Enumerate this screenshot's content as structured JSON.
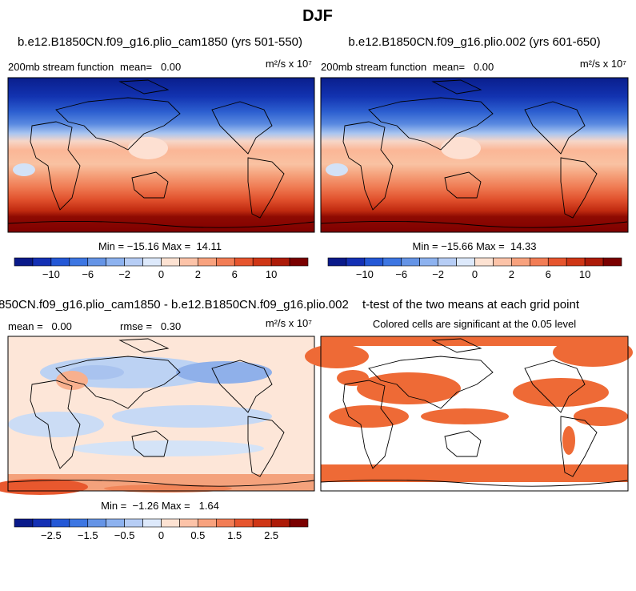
{
  "title": "DJF",
  "panels": [
    {
      "title": "b.e12.B1850CN.f09_g16.plio_cam1850 (yrs 501-550)",
      "left_label": "200mb stream function",
      "mid_label": "mean=   0.00",
      "units": "m²/s x 10⁷",
      "stats": "Min = −15.16 Max =  14.11",
      "colorbar": {
        "labels": [
          "−10",
          "−6",
          "−2",
          "0",
          "2",
          "6",
          "10"
        ],
        "colors": [
          "#0a1a8a",
          "#1430b4",
          "#2458d6",
          "#3d76e2",
          "#6594e6",
          "#8db2ef",
          "#b6cdf5",
          "#dde9fb",
          "#fde2d2",
          "#fcc3a8",
          "#f8a27e",
          "#f27d55",
          "#e6552e",
          "#cf3616",
          "#ad1b08",
          "#7a0000"
        ]
      }
    },
    {
      "title": "b.e12.B1850CN.f09_g16.plio.002 (yrs 601-650)",
      "left_label": "200mb stream function",
      "mid_label": "mean=   0.00",
      "units": "m²/s x 10⁷",
      "stats": "Min = −15.66 Max =  14.33",
      "colorbar": {
        "labels": [
          "−10",
          "−6",
          "−2",
          "0",
          "2",
          "6",
          "10"
        ],
        "colors": [
          "#0a1a8a",
          "#1430b4",
          "#2458d6",
          "#3d76e2",
          "#6594e6",
          "#8db2ef",
          "#b6cdf5",
          "#dde9fb",
          "#fde2d2",
          "#fcc3a8",
          "#f8a27e",
          "#f27d55",
          "#e6552e",
          "#cf3616",
          "#ad1b08",
          "#7a0000"
        ]
      }
    },
    {
      "title": "850CN.f09_g16.plio_cam1850 - b.e12.B1850CN.f09_g16.plio.002",
      "left_label": "mean =   0.00",
      "mid_label": "rmse =   0.30",
      "units": "m²/s x 10⁷",
      "stats": "Min =  −1.26 Max =   1.64",
      "colorbar": {
        "labels": [
          "−2.5",
          "−1.5",
          "−0.5",
          "0",
          "0.5",
          "1.5",
          "2.5"
        ],
        "colors": [
          "#0a1a8a",
          "#1430b4",
          "#2458d6",
          "#3d76e2",
          "#6594e6",
          "#8db2ef",
          "#b6cdf5",
          "#dde9fb",
          "#fde2d2",
          "#fcc3a8",
          "#f8a27e",
          "#f27d55",
          "#e6552e",
          "#cf3616",
          "#ad1b08",
          "#7a0000"
        ]
      }
    },
    {
      "title": "t-test of the two means at each grid point",
      "left_label": "Colored cells are significant at the 0.05 level"
    }
  ]
}
